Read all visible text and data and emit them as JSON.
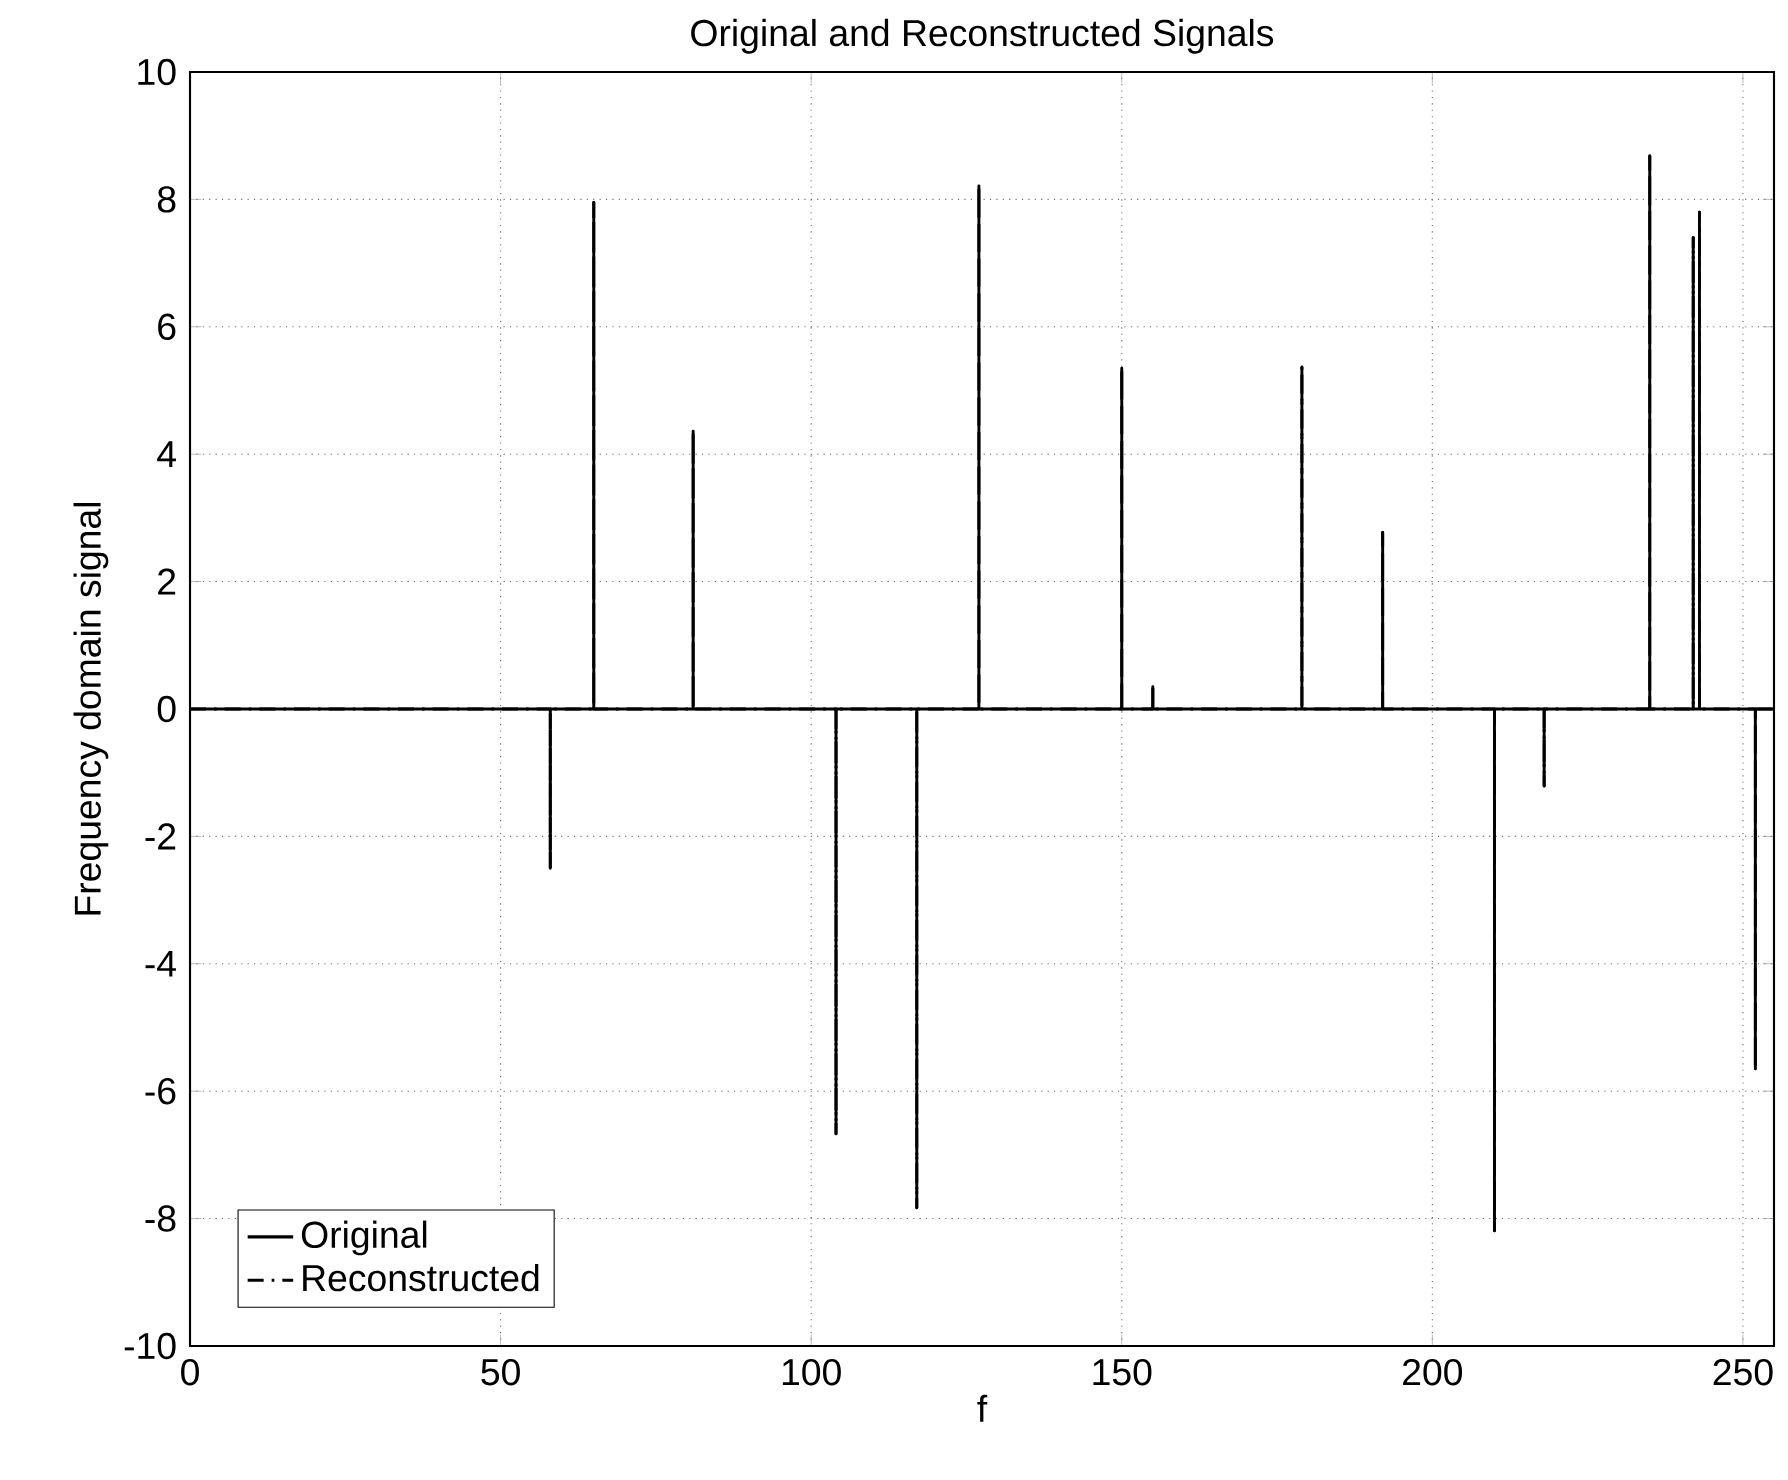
{
  "chart_data": {
    "type": "line",
    "title": "Original and Reconstructed Signals",
    "xlabel": "f",
    "ylabel": "Frequency domain signal",
    "x": [
      0,
      58,
      58,
      58,
      65,
      65,
      65,
      81,
      81,
      81,
      104,
      104,
      104,
      117,
      117,
      117,
      127,
      127,
      127,
      150,
      150,
      150,
      155,
      155,
      155,
      179,
      179,
      179,
      192,
      192,
      192,
      210,
      210,
      210,
      218,
      218,
      218,
      235,
      235,
      235,
      242,
      242,
      242,
      243,
      243,
      243,
      252,
      252,
      252,
      255
    ],
    "series": [
      {
        "name": "Original",
        "color": "#000000",
        "line_style": "solid",
        "values": [
          0,
          0,
          -2.5,
          0,
          0,
          7.95,
          0,
          0,
          4.36,
          0,
          0,
          -6.67,
          0,
          0,
          -7.83,
          0,
          0,
          8.21,
          0,
          0,
          5.35,
          0,
          0,
          0.35,
          0,
          0,
          5.37,
          0,
          0,
          2.77,
          0,
          0,
          -8.19,
          0,
          0,
          -1.21,
          0,
          0,
          8.68,
          0,
          0,
          7.4,
          0,
          0,
          7.8,
          0,
          0,
          -5.65,
          0,
          0
        ]
      },
      {
        "name": "Reconstructed",
        "color": "#000000",
        "line_style": "dashdot",
        "values": [
          0,
          0,
          -2.5,
          0,
          0,
          7.95,
          0,
          0,
          4.36,
          0,
          0,
          -6.67,
          0,
          0,
          -7.83,
          0,
          0,
          8.21,
          0,
          0,
          5.35,
          0,
          0,
          0.35,
          0,
          0,
          5.37,
          0,
          0,
          2.77,
          0,
          0,
          -8.19,
          0,
          0,
          -1.21,
          0,
          0,
          8.68,
          0,
          0,
          7.4,
          0,
          0,
          7.8,
          0,
          0,
          -5.65,
          0,
          0
        ]
      }
    ],
    "xlim": [
      0,
      255
    ],
    "ylim": [
      -10,
      10
    ],
    "xticks": [
      0,
      50,
      100,
      150,
      200,
      250
    ],
    "yticks": [
      -10,
      -8,
      -6,
      -4,
      -2,
      0,
      2,
      4,
      6,
      8,
      10
    ],
    "grid": true,
    "legend": "bottom left",
    "marker": "none"
  }
}
